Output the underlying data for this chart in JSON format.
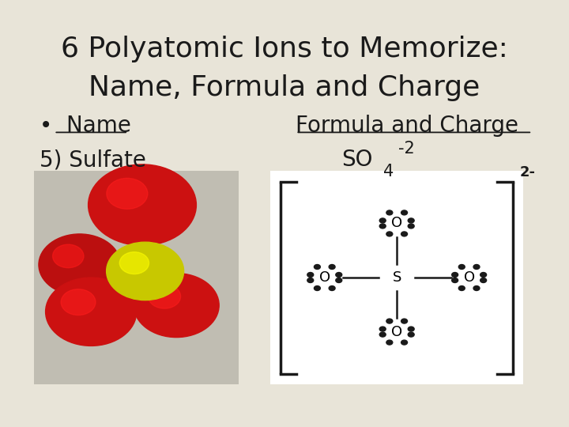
{
  "bg_color": "#e8e4d8",
  "title_line1": "6 Polyatomic Ions to Memorize:",
  "title_line2": "Name, Formula and Charge",
  "title_fontsize": 26,
  "title_color": "#1a1a1a",
  "bullet_label": "•  Name",
  "col2_header": "Formula and Charge",
  "header_fontsize": 20,
  "ion_name": "5) Sulfate",
  "ion_fontsize": 20,
  "bracket_color": "#1a1a1a",
  "dot_color": "#1a1a1a",
  "gray_bg": "#c0bdb2",
  "white": "#ffffff"
}
